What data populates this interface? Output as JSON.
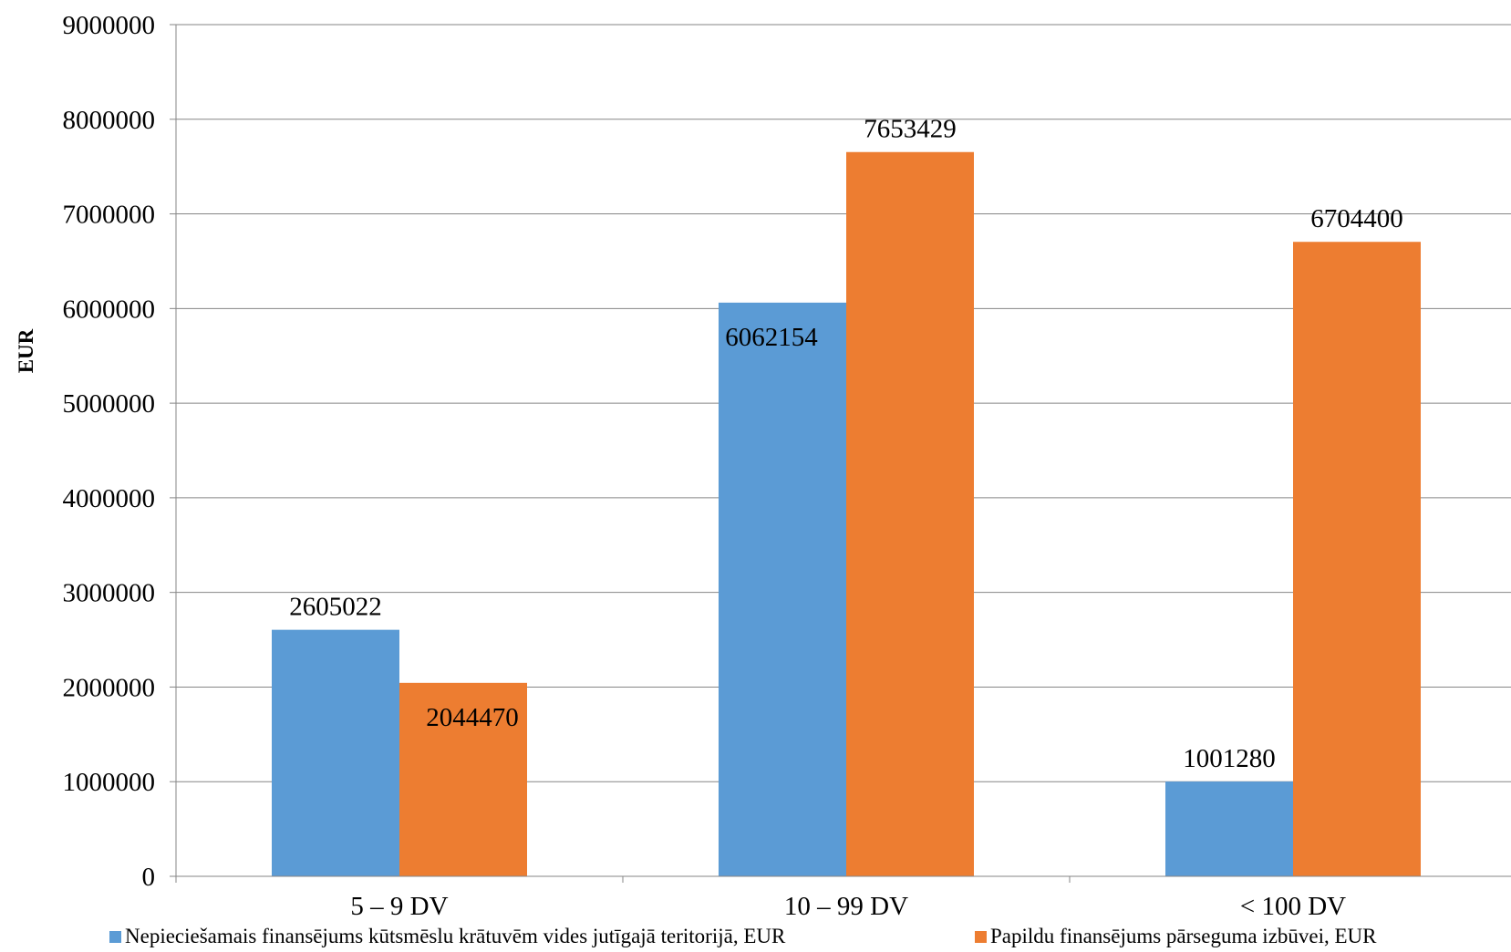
{
  "chart_data": {
    "type": "bar",
    "categories": [
      "5 – 9 DV",
      "10 – 99 DV",
      "< 100 DV"
    ],
    "series": [
      {
        "name": "Nepieciešamais finansējums kūtsmēslu krātuvēm vides jutīgajā teritorijā, EUR",
        "color": "#5B9BD5",
        "values": [
          2605022,
          6062154,
          1001280
        ]
      },
      {
        "name": "Papildu finansējums pārseguma izbūvei, EUR",
        "color": "#ED7D31",
        "values": [
          2044470,
          7653429,
          6704400
        ]
      }
    ],
    "data_labels": [
      [
        "2605022",
        "6062154",
        "1001280"
      ],
      [
        "2044470",
        "7653429",
        "6704400"
      ]
    ],
    "ylabel": "EUR",
    "xlabel": "",
    "ylim": [
      0,
      9000000
    ],
    "yticks": [
      "0",
      "1000000",
      "2000000",
      "3000000",
      "4000000",
      "5000000",
      "6000000",
      "7000000",
      "8000000",
      "9000000"
    ],
    "grid": true,
    "legend_position": "bottom"
  }
}
